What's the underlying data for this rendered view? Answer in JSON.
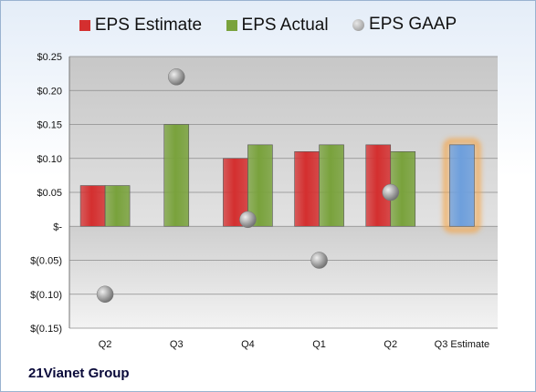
{
  "chart_data": {
    "type": "bar",
    "categories": [
      "Q2",
      "Q3",
      "Q4",
      "Q1",
      "Q2",
      "Q3 Estimate"
    ],
    "series": [
      {
        "name": "EPS Estimate",
        "kind": "bar",
        "values": [
          0.06,
          null,
          0.1,
          0.11,
          0.12,
          null
        ],
        "color": "#d42f2f"
      },
      {
        "name": "EPS Actual",
        "kind": "bar",
        "values": [
          0.06,
          0.15,
          0.12,
          0.12,
          0.11,
          null
        ],
        "color": "#79a23c"
      },
      {
        "name": "EPS GAAP",
        "kind": "scatter",
        "values": [
          -0.1,
          0.22,
          0.01,
          -0.05,
          0.05,
          null
        ],
        "color": "#a8a8a8"
      },
      {
        "name": "Q3 Estimate",
        "kind": "bar",
        "values": [
          null,
          null,
          null,
          null,
          null,
          0.12
        ],
        "color": "#6e9fdc",
        "highlight": "#f5a64a"
      }
    ],
    "yticks": [
      0.25,
      0.2,
      0.15,
      0.1,
      0.05,
      0,
      -0.05,
      -0.1,
      -0.15
    ],
    "ytick_labels": [
      "$0.25",
      "$0.20",
      "$0.15",
      "$0.10",
      "$0.05",
      "$-",
      "$(0.05)",
      "$(0.10)",
      "$(0.15)"
    ],
    "ylim": [
      -0.15,
      0.25
    ],
    "legend": [
      "EPS Estimate",
      "EPS Actual",
      "EPS GAAP"
    ],
    "legend_position": "top",
    "grid": true
  },
  "footer": {
    "company": "21Vianet Group"
  }
}
